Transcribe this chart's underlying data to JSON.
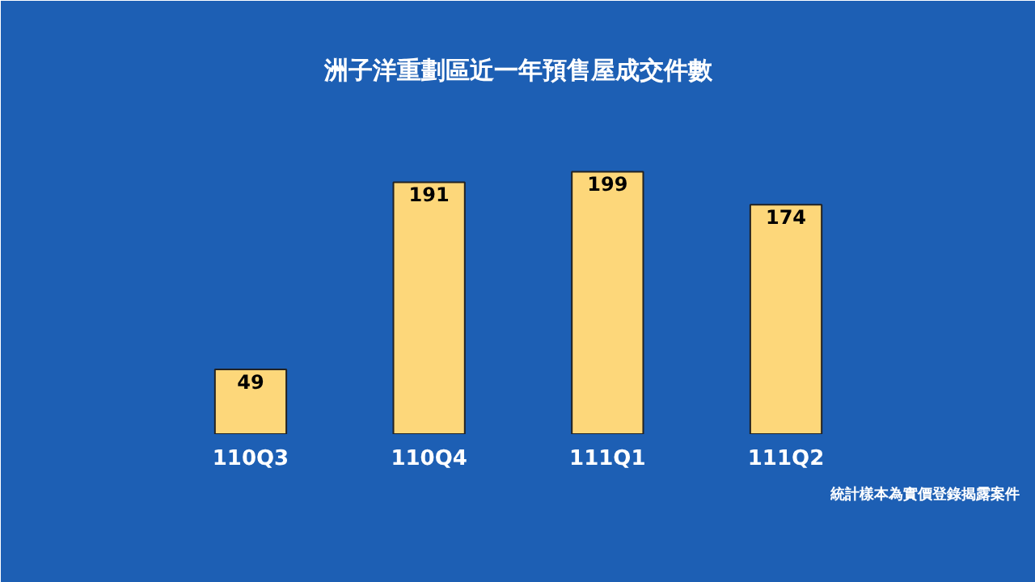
{
  "chart_data": {
    "type": "bar",
    "title": "洲子洋重劃區近一年預售屋成交件數",
    "categories": [
      "110Q3",
      "110Q4",
      "111Q1",
      "111Q2"
    ],
    "values": [
      49,
      191,
      199,
      174
    ],
    "color": "#fdd77a",
    "data_labels": true,
    "grid": false,
    "annotations": [
      "統計樣本為實價登錄揭露案件"
    ]
  }
}
